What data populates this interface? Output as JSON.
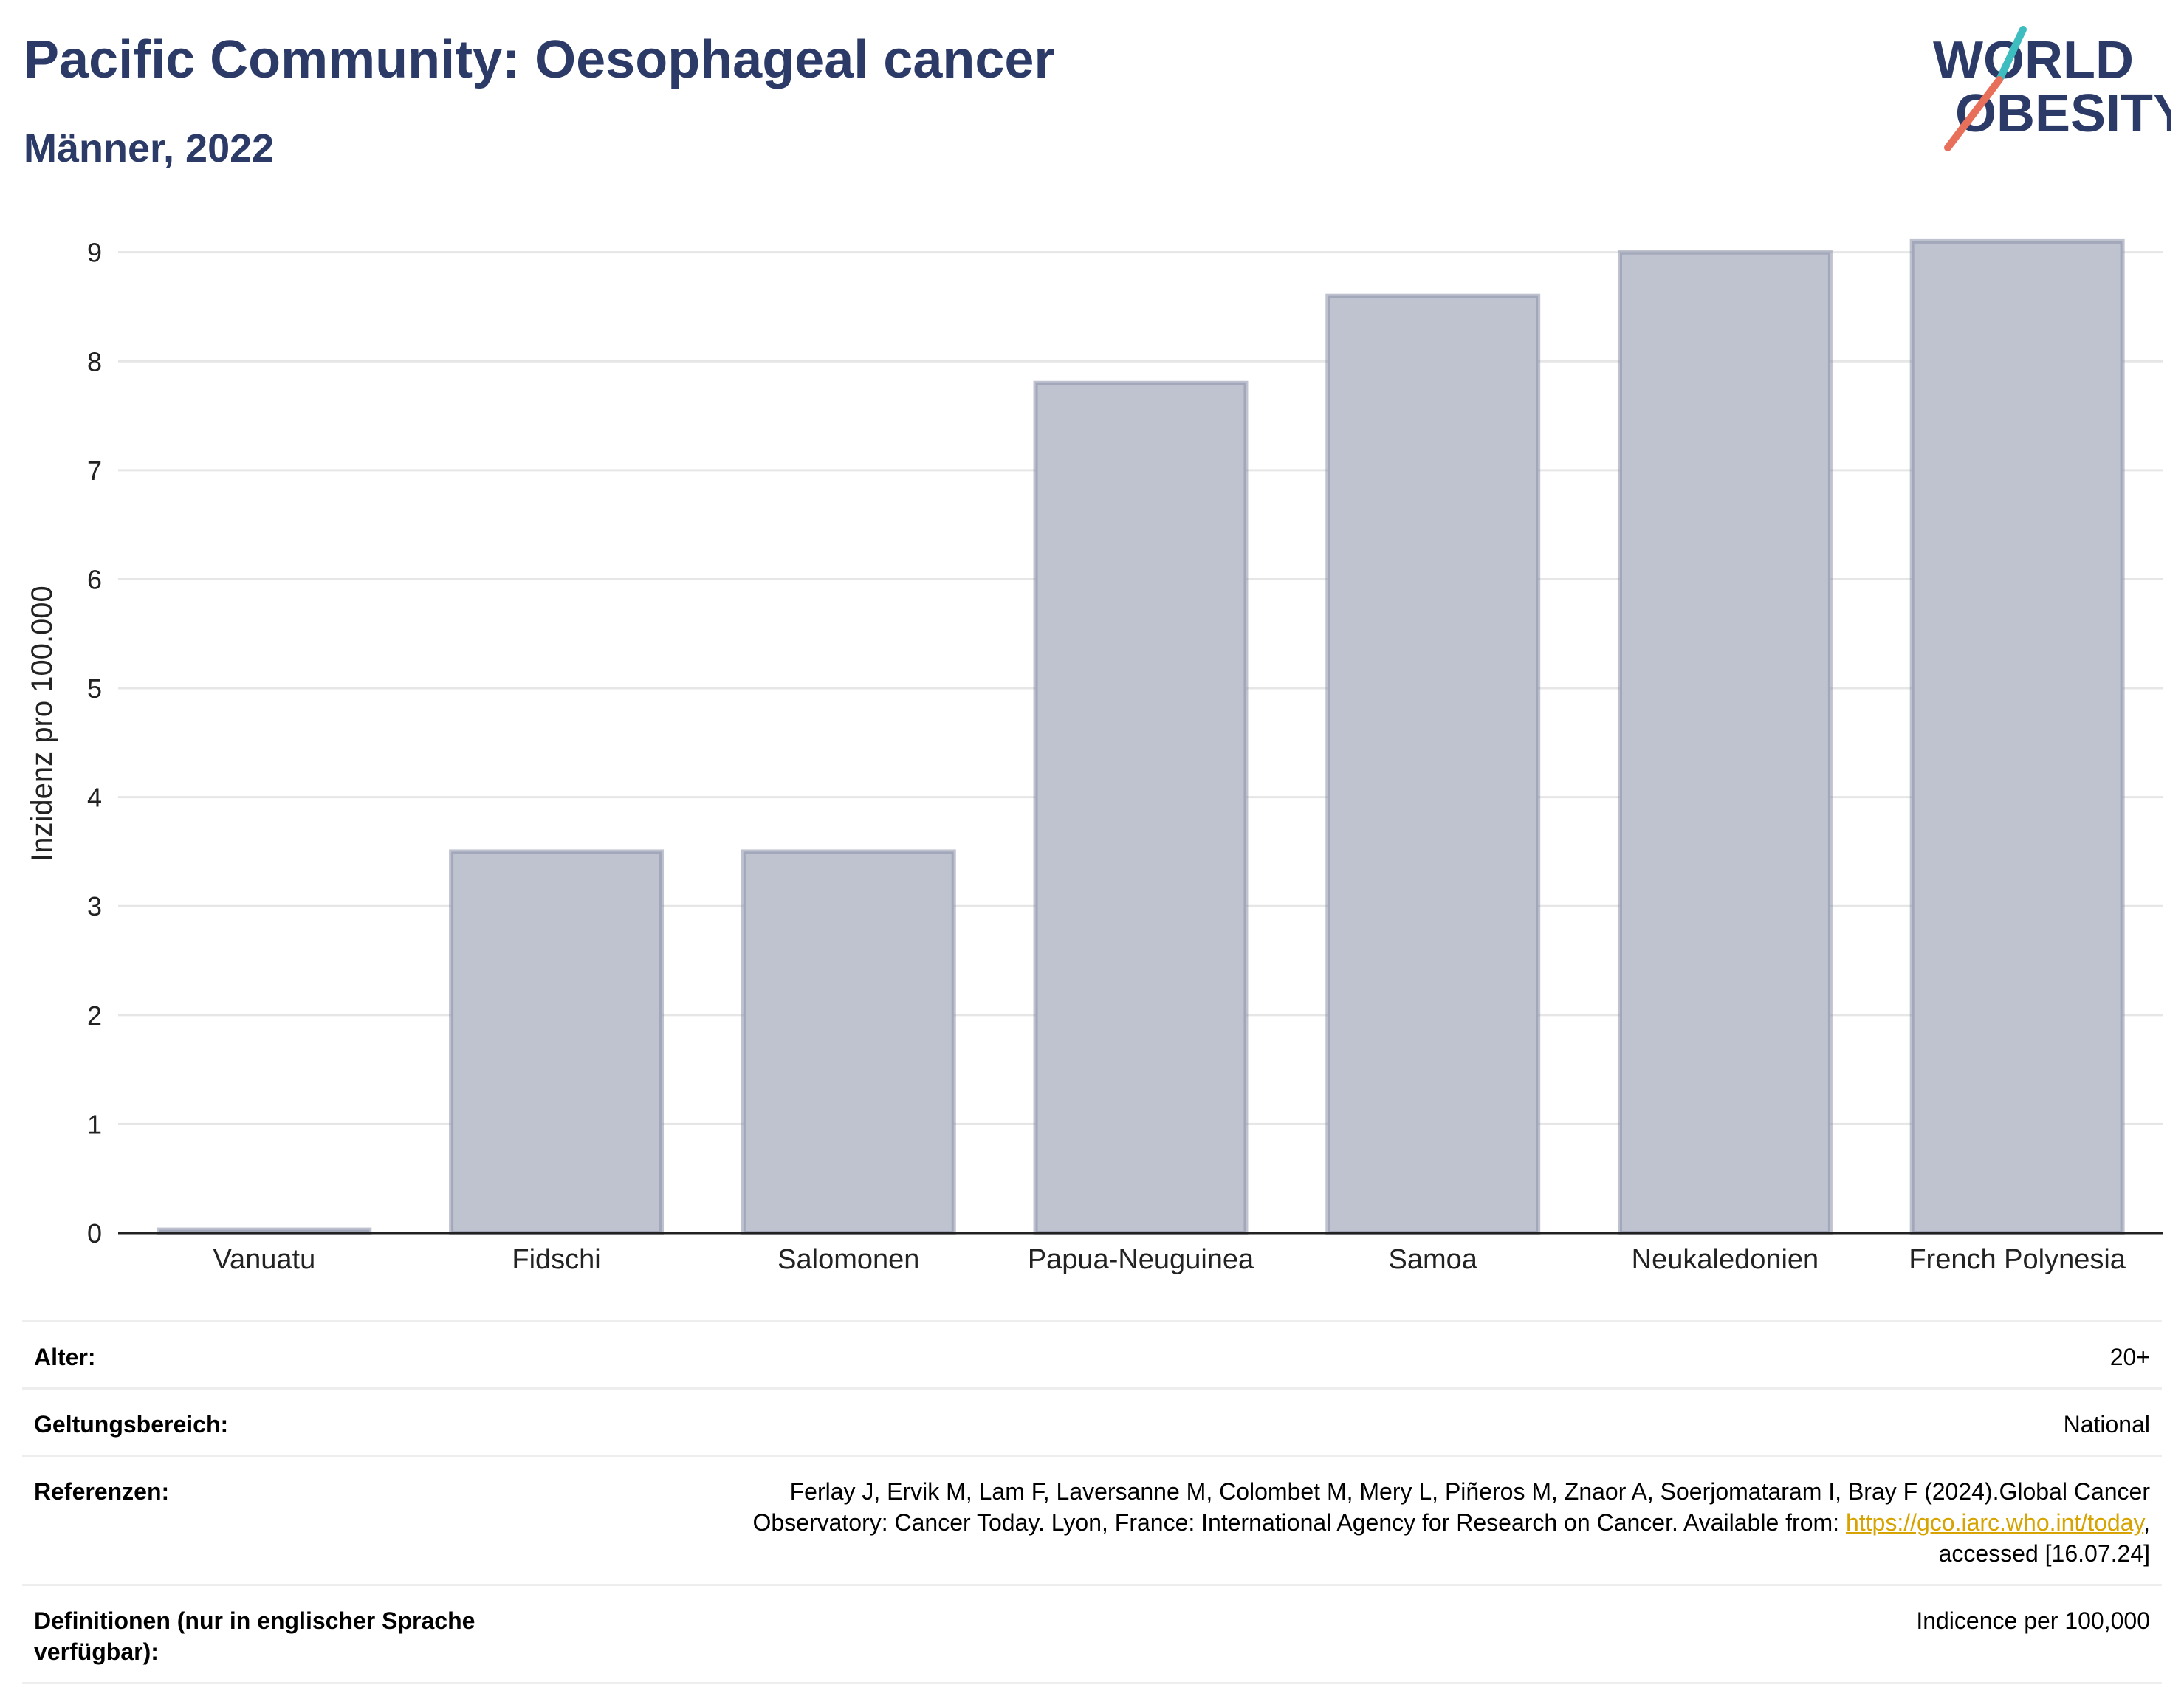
{
  "header": {
    "title": "Pacific Community: Oesophageal cancer",
    "subtitle": "Männer, 2022"
  },
  "logo": {
    "line1": "WORLD",
    "line2": "OBESITY",
    "text_color": "#2b3a67",
    "accent_teal": "#3dbdc0",
    "accent_coral": "#e8705a"
  },
  "chart_data": {
    "type": "bar",
    "categories": [
      "Vanuatu",
      "Fidschi",
      "Salomonen",
      "Papua-Neuguinea",
      "Samoa",
      "Neukaledonien",
      "French Polynesia"
    ],
    "values": [
      0.03,
      3.5,
      3.5,
      7.8,
      8.6,
      9.0,
      9.1
    ],
    "title": "",
    "xlabel": "",
    "ylabel": "Inzidenz pro 100.000",
    "ylim": [
      0,
      9.35
    ],
    "yticks": [
      "0",
      "1",
      "2",
      "3",
      "4",
      "5",
      "6",
      "7",
      "8",
      "9"
    ],
    "grid": true,
    "bar_fill": "#bfc3d0",
    "bar_stroke": "#8a90a8",
    "legend": "none"
  },
  "meta": {
    "rows": [
      {
        "label": "Alter:",
        "value": "20+"
      },
      {
        "label": "Geltungsbereich:",
        "value": "National"
      },
      {
        "label": "Referenzen:",
        "value_lines": [
          "Ferlay J, Ervik M, Lam F, Laversanne M, Colombet M, Mery L, Piñeros M, Znaor A, Soerjomataram I, Bray F (2024).Global Cancer",
          "Observatory: Cancer Today. Lyon, France: International Agency for Research on Cancer. Available from: ",
          "https://gco.iarc.who.int/today",
          ",",
          "accessed [16.07.24]"
        ]
      },
      {
        "label_lines": [
          "Definitionen (nur in englischer Sprache",
          "verfügbar):"
        ],
        "value": "Indicence per 100,000"
      }
    ]
  }
}
